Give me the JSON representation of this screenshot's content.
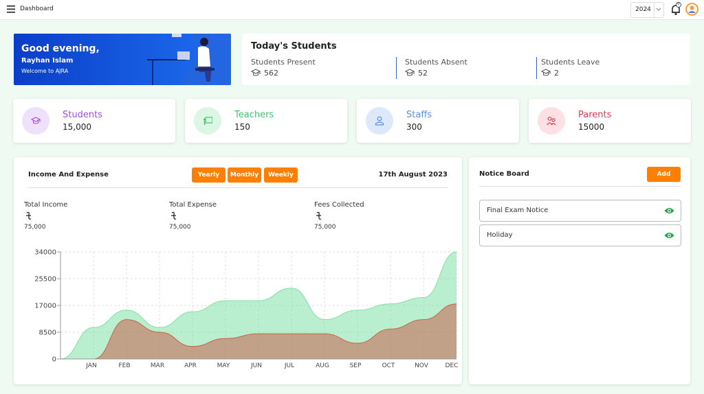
{
  "header": {
    "title": "Dashboard",
    "year": "2024",
    "notification_count": "0"
  },
  "welcome": {
    "greeting": "Good evening,",
    "name": "Rayhan Islam",
    "message": "Welcome to AJRA"
  },
  "todays_students": {
    "title": "Today's Students",
    "stats": [
      {
        "label": "Students Present",
        "value": "562"
      },
      {
        "label": "Students Absent",
        "value": "52"
      },
      {
        "label": "Students Leave",
        "value": "2"
      }
    ]
  },
  "summary_cards": [
    {
      "label": "Students",
      "value": "15,000"
    },
    {
      "label": "Teachers",
      "value": "150"
    },
    {
      "label": "Staffs",
      "value": "300"
    },
    {
      "label": "Parents",
      "value": "15000"
    }
  ],
  "income_expense": {
    "title": "Income And Expense",
    "filters": [
      "Yearly",
      "Monthly",
      "Weekly"
    ],
    "date": "17th August 2023",
    "totals": [
      {
        "label": "Total Income",
        "value": "75,000"
      },
      {
        "label": "Total Expense",
        "value": "75,000"
      },
      {
        "label": "Fees Collected",
        "value": "75,000"
      }
    ],
    "chart": {
      "type": "area",
      "categories": [
        null,
        "JAN",
        "FEB",
        "MAR",
        "APR",
        "MAY",
        "JUN",
        "JUL",
        "AUG",
        "SEP",
        "OCT",
        "NOV",
        "DEC"
      ],
      "series": [
        {
          "color": "#7fe0a6",
          "values": [
            0,
            10000,
            15500,
            10000,
            15000,
            18500,
            18500,
            22500,
            12500,
            15500,
            17500,
            19500,
            34000
          ]
        },
        {
          "color": "#c9624c",
          "values": [
            0,
            0,
            12500,
            8500,
            4000,
            6500,
            8000,
            8000,
            8000,
            5000,
            9500,
            12500,
            17500
          ]
        }
      ],
      "ylim": [
        0,
        34000
      ],
      "yticks": [
        0,
        8500,
        17000,
        25500,
        34000
      ],
      "grid": true
    }
  },
  "notice_board": {
    "title": "Notice Board",
    "add_button": "Add",
    "notices": [
      "Final Exam Notice",
      "Holiday"
    ]
  }
}
